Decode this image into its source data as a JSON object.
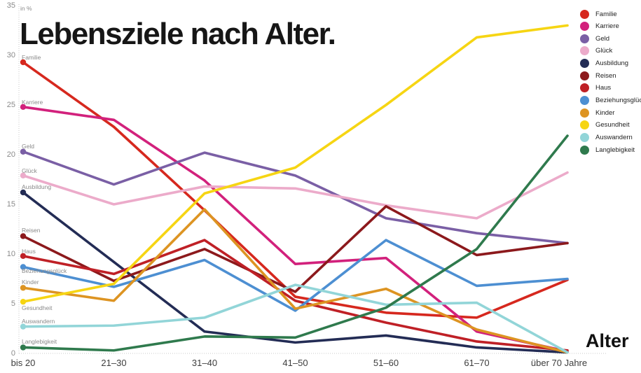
{
  "chart_data": {
    "type": "line",
    "title": "Lebensziele nach Alter.",
    "unit_label": "in %",
    "xlabel": "Alter",
    "categories": [
      "bis 20",
      "21–30",
      "31–40",
      "41–50",
      "51–60",
      "61–70",
      "über 70 Jahre"
    ],
    "ylim": [
      0,
      35
    ],
    "yticks": [
      0,
      5,
      10,
      15,
      20,
      25,
      30,
      35
    ],
    "grid": "dotted y-axis line and dotted zero baseline only",
    "legend_position": "top-right",
    "series": [
      {
        "name": "Familie",
        "color": "#d6281e",
        "values": [
          29.3,
          22.8,
          14.4,
          5.7,
          4.1,
          3.6,
          7.4
        ]
      },
      {
        "name": "Karriere",
        "color": "#d2217c",
        "values": [
          24.8,
          23.5,
          17.4,
          9.0,
          9.6,
          2.2,
          0.2
        ]
      },
      {
        "name": "Geld",
        "color": "#7a5fa5",
        "values": [
          20.3,
          17.0,
          20.2,
          17.9,
          13.6,
          12.1,
          11.1
        ]
      },
      {
        "name": "Glück",
        "color": "#ecabca",
        "values": [
          17.9,
          15.0,
          16.8,
          16.6,
          14.9,
          13.6,
          18.2
        ]
      },
      {
        "name": "Ausbildung",
        "color": "#232c55",
        "values": [
          16.2,
          9.2,
          2.2,
          1.1,
          1.8,
          0.6,
          0.1
        ]
      },
      {
        "name": "Reisen",
        "color": "#8c191c",
        "values": [
          11.8,
          7.3,
          10.5,
          6.2,
          14.8,
          9.9,
          11.1
        ]
      },
      {
        "name": "Haus",
        "color": "#bf2026",
        "values": [
          9.8,
          8.0,
          11.4,
          5.3,
          3.1,
          1.2,
          0.3
        ]
      },
      {
        "name": "Beziehungsglück",
        "color": "#4d8fd2",
        "values": [
          8.7,
          6.7,
          9.4,
          4.3,
          11.4,
          6.8,
          7.5
        ]
      },
      {
        "name": "Kinder",
        "color": "#dd9422",
        "values": [
          6.6,
          5.3,
          14.5,
          4.5,
          6.5,
          2.4,
          0.1
        ]
      },
      {
        "name": "Gesundheit",
        "color": "#f6d513",
        "values": [
          5.2,
          7.0,
          16.1,
          18.7,
          25.0,
          31.8,
          33.0
        ]
      },
      {
        "name": "Auswandern",
        "color": "#92d5d8",
        "values": [
          2.7,
          2.8,
          3.6,
          6.9,
          4.9,
          5.1,
          0.1
        ]
      },
      {
        "name": "Langlebigkeit",
        "color": "#2f7a4d",
        "values": [
          0.6,
          0.3,
          1.7,
          1.6,
          4.6,
          10.5,
          21.9
        ]
      }
    ]
  }
}
